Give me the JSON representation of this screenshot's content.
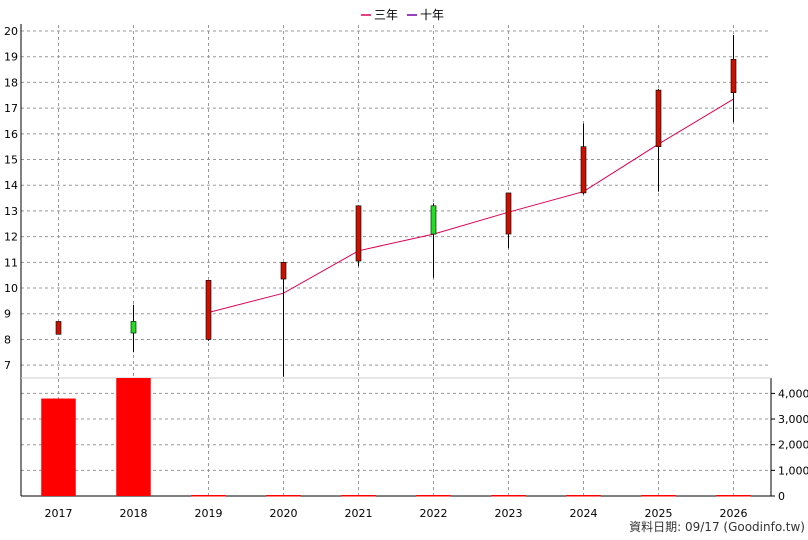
{
  "colors": {
    "background": "#ffffff",
    "grid": "#999999",
    "candle_up": "#cc1100",
    "candle_down": "#22dd22",
    "volume_bar": "#ff0000",
    "line_3yr": "#dd0055",
    "line_10yr": "#7700aa"
  },
  "legend": [
    {
      "name": "三年",
      "color": "#dd0055"
    },
    {
      "name": "十年",
      "color": "#7700aa"
    }
  ],
  "credit": "資料日期: 09/17 (Goodinfo.tw)",
  "chart_data": [
    {
      "type": "candlestick",
      "legend_position": "top-center",
      "grid": true,
      "categories": [
        "2017",
        "2018",
        "2019",
        "2020",
        "2021",
        "2022",
        "2023",
        "2024",
        "2025",
        "2026"
      ],
      "ylim": [
        6.5,
        20
      ],
      "yticks": [
        7,
        8,
        9,
        10,
        11,
        12,
        13,
        14,
        15,
        16,
        17,
        18,
        19,
        20
      ],
      "candles": [
        {
          "open": 8.2,
          "close": 8.7,
          "high": 8.7,
          "low": 8.2,
          "dir": "up"
        },
        {
          "open": 8.7,
          "close": 8.25,
          "high": 9.35,
          "low": 7.5,
          "dir": "down"
        },
        {
          "open": 8.0,
          "close": 10.3,
          "high": 10.3,
          "low": 7.95,
          "dir": "up"
        },
        {
          "open": 10.35,
          "close": 11.0,
          "high": 11.0,
          "low": 6.55,
          "dir": "up"
        },
        {
          "open": 11.05,
          "close": 13.2,
          "high": 13.2,
          "low": 10.85,
          "dir": "up"
        },
        {
          "open": 13.2,
          "close": 12.1,
          "high": 13.3,
          "low": 10.4,
          "dir": "down"
        },
        {
          "open": 12.1,
          "close": 13.7,
          "high": 13.7,
          "low": 11.55,
          "dir": "up"
        },
        {
          "open": 13.7,
          "close": 15.5,
          "high": 16.4,
          "low": 13.65,
          "dir": "up"
        },
        {
          "open": 15.5,
          "close": 17.7,
          "high": 17.75,
          "low": 13.75,
          "dir": "up"
        },
        {
          "open": 17.6,
          "close": 18.9,
          "high": 19.85,
          "low": 16.45,
          "dir": "up"
        }
      ],
      "series": [
        {
          "name": "三年",
          "x": [
            "2019",
            "2020",
            "2021",
            "2022",
            "2023",
            "2024",
            "2025",
            "2026"
          ],
          "values": [
            9.05,
            9.8,
            11.45,
            12.1,
            12.95,
            13.75,
            15.6,
            17.35
          ]
        }
      ]
    },
    {
      "type": "bar",
      "categories": [
        "2017",
        "2018",
        "2019",
        "2020",
        "2021",
        "2022",
        "2023",
        "2024",
        "2025",
        "2026"
      ],
      "values": [
        3800,
        4600,
        0,
        0,
        0,
        0,
        0,
        0,
        0,
        0
      ],
      "ylim": [
        0,
        4600
      ],
      "yticks": [
        0,
        1000,
        2000,
        3000,
        4000
      ],
      "ytick_labels": [
        "0",
        "1,000",
        "2,000",
        "3,000",
        "4,000"
      ],
      "grid": true
    }
  ]
}
